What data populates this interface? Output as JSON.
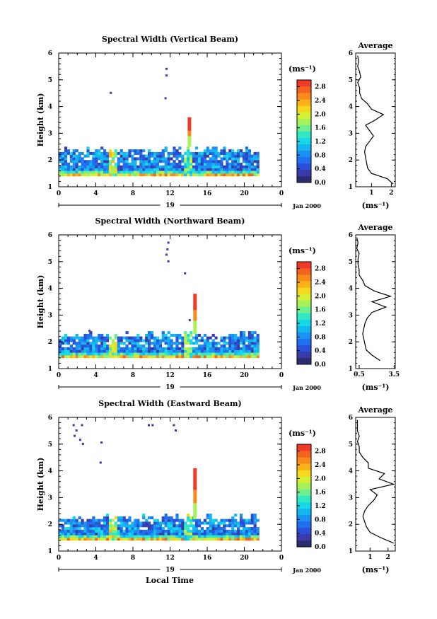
{
  "figure": {
    "xlabel": "Local Time",
    "date_label": "19",
    "month_year_label": "Jan 2000"
  },
  "chart_data": [
    {
      "type": "heatmap",
      "title": "Spectral Width (Vertical Beam)",
      "ylabel": "Height (km)",
      "xlim": [
        0,
        24
      ],
      "ylim": [
        1,
        6
      ],
      "xticks": [
        "0",
        "4",
        "8",
        "12",
        "16",
        "20",
        "0"
      ],
      "yticks": [
        "1",
        "2",
        "3",
        "4",
        "5",
        "6"
      ],
      "data_extent": {
        "x": [
          0,
          21.5
        ],
        "y": [
          1.4,
          2.45
        ]
      },
      "colorbar": {
        "unit": "(ms⁻¹)",
        "ticks": [
          "0.0",
          "0.4",
          "0.8",
          "1.2",
          "1.6",
          "2.0",
          "2.4",
          "2.8"
        ],
        "range": [
          0,
          3.0
        ]
      },
      "average_profile": {
        "title": "Average",
        "xlabel": "(ms⁻¹)",
        "xticks": [
          "1",
          "2"
        ],
        "xlim": [
          0.2,
          2.2
        ],
        "height": [
          1.1,
          1.3,
          1.5,
          1.7,
          1.9,
          2.1,
          2.3,
          2.5,
          2.7,
          2.9,
          3.1,
          3.3,
          3.5,
          3.7,
          3.9,
          4.1,
          4.3,
          4.5,
          4.7,
          4.9,
          5.1,
          5.3,
          5.5,
          5.7,
          5.9
        ],
        "values": [
          2.1,
          1.8,
          1.0,
          0.8,
          0.75,
          0.7,
          0.65,
          0.7,
          0.9,
          1.1,
          0.9,
          0.7,
          1.2,
          1.6,
          1.0,
          0.8,
          0.5,
          0.4,
          0.4,
          0.3,
          0.45,
          0.4,
          0.3,
          0.35,
          0.3
        ]
      },
      "sparse_points": [
        {
          "x": 11.5,
          "y": 5.45
        },
        {
          "x": 11.5,
          "y": 5.2
        },
        {
          "x": 11.4,
          "y": 4.35
        },
        {
          "x": 5.5,
          "y": 4.55
        }
      ],
      "spike": {
        "x": 13.9,
        "y_top": 3.55,
        "y_bottom": 2.5
      }
    },
    {
      "type": "heatmap",
      "title": "Spectral Width (Northward Beam)",
      "ylabel": "Height (km)",
      "xlim": [
        0,
        24
      ],
      "ylim": [
        1,
        6
      ],
      "xticks": [
        "0",
        "4",
        "8",
        "12",
        "16",
        "20",
        "0"
      ],
      "yticks": [
        "1",
        "2",
        "3",
        "4",
        "5",
        "6"
      ],
      "data_extent": {
        "x": [
          0,
          21.5
        ],
        "y": [
          1.4,
          2.35
        ]
      },
      "colorbar": {
        "unit": "(ms⁻¹)",
        "ticks": [
          "0.0",
          "0.4",
          "0.8",
          "1.2",
          "1.6",
          "2.0",
          "2.4",
          "2.8"
        ],
        "range": [
          0,
          3.0
        ]
      },
      "average_profile": {
        "title": "Average",
        "xlabel": "(ms⁻¹)",
        "xticks": [
          "0.5",
          "3.5"
        ],
        "xlim": [
          0.2,
          3.6
        ],
        "height": [
          1.3,
          1.5,
          1.7,
          1.9,
          2.1,
          2.3,
          2.5,
          2.7,
          2.9,
          3.1,
          3.3,
          3.5,
          3.7,
          3.9,
          4.1,
          4.3,
          4.5,
          4.7,
          4.9,
          5.1,
          5.3,
          5.5,
          5.7,
          5.9
        ],
        "values": [
          2.3,
          1.6,
          1.1,
          1.0,
          0.9,
          0.8,
          0.9,
          1.0,
          1.2,
          1.6,
          2.8,
          1.6,
          3.2,
          1.8,
          1.0,
          0.8,
          0.5,
          0.5,
          0.4,
          0.4,
          0.5,
          0.3,
          0.4,
          0.3
        ]
      },
      "sparse_points": [
        {
          "x": 11.7,
          "y": 5.75
        },
        {
          "x": 11.6,
          "y": 5.5
        },
        {
          "x": 11.5,
          "y": 5.3
        },
        {
          "x": 11.7,
          "y": 5.05
        },
        {
          "x": 13.5,
          "y": 4.6
        },
        {
          "x": 3.2,
          "y": 2.45
        },
        {
          "x": 14.0,
          "y": 2.85
        }
      ],
      "spike": {
        "x": 14.5,
        "y_top": 3.8,
        "y_bottom": 2.3
      }
    },
    {
      "type": "heatmap",
      "title": "Spectral Width (Eastward Beam)",
      "ylabel": "Height (km)",
      "xlim": [
        0,
        24
      ],
      "ylim": [
        1,
        6
      ],
      "xticks": [
        "0",
        "4",
        "8",
        "12",
        "16",
        "20",
        "0"
      ],
      "yticks": [
        "1",
        "2",
        "3",
        "4",
        "5",
        "6"
      ],
      "data_extent": {
        "x": [
          0,
          21.5
        ],
        "y": [
          1.4,
          2.35
        ]
      },
      "colorbar": {
        "unit": "(ms⁻¹)",
        "ticks": [
          "0.0",
          "0.4",
          "0.8",
          "1.2",
          "1.6",
          "2.0",
          "2.4",
          "2.8"
        ],
        "range": [
          0,
          3.0
        ]
      },
      "average_profile": {
        "title": "Average",
        "xlabel": "(ms⁻¹)",
        "xticks": [
          "1",
          "2"
        ],
        "xlim": [
          0.2,
          2.4
        ],
        "height": [
          1.3,
          1.5,
          1.7,
          1.9,
          2.1,
          2.3,
          2.5,
          2.7,
          2.9,
          3.1,
          3.3,
          3.5,
          3.7,
          3.9,
          4.1,
          4.3,
          4.5,
          4.7,
          4.9,
          5.1,
          5.3,
          5.5,
          5.7,
          5.9
        ],
        "values": [
          2.3,
          1.6,
          1.0,
          0.8,
          0.7,
          0.6,
          0.7,
          0.9,
          1.2,
          1.4,
          1.0,
          2.3,
          1.5,
          1.8,
          0.9,
          0.9,
          0.6,
          0.4,
          0.4,
          0.3,
          0.4,
          0.3,
          0.3,
          0.3
        ]
      },
      "sparse_points": [
        {
          "x": 1.5,
          "y": 5.75
        },
        {
          "x": 2.4,
          "y": 5.75
        },
        {
          "x": 1.8,
          "y": 5.55
        },
        {
          "x": 1.6,
          "y": 5.35
        },
        {
          "x": 2.2,
          "y": 5.2
        },
        {
          "x": 2.5,
          "y": 5.05
        },
        {
          "x": 4.5,
          "y": 5.1
        },
        {
          "x": 4.4,
          "y": 4.35
        },
        {
          "x": 9.6,
          "y": 5.75
        },
        {
          "x": 10.0,
          "y": 5.75
        },
        {
          "x": 12.3,
          "y": 5.75
        },
        {
          "x": 12.5,
          "y": 5.55
        }
      ],
      "spike": {
        "x": 14.5,
        "y_top": 4.1,
        "y_bottom": 2.2
      }
    }
  ],
  "palette": [
    "#2b2c6e",
    "#3a3aa8",
    "#2a4fd8",
    "#1f6fef",
    "#1b92f2",
    "#14b6ee",
    "#16d8e6",
    "#33e8c4",
    "#6ef08e",
    "#a6f25a",
    "#d6f034",
    "#f6d91e",
    "#fbb11a",
    "#f98a1c",
    "#f4621f",
    "#ef3a27"
  ]
}
